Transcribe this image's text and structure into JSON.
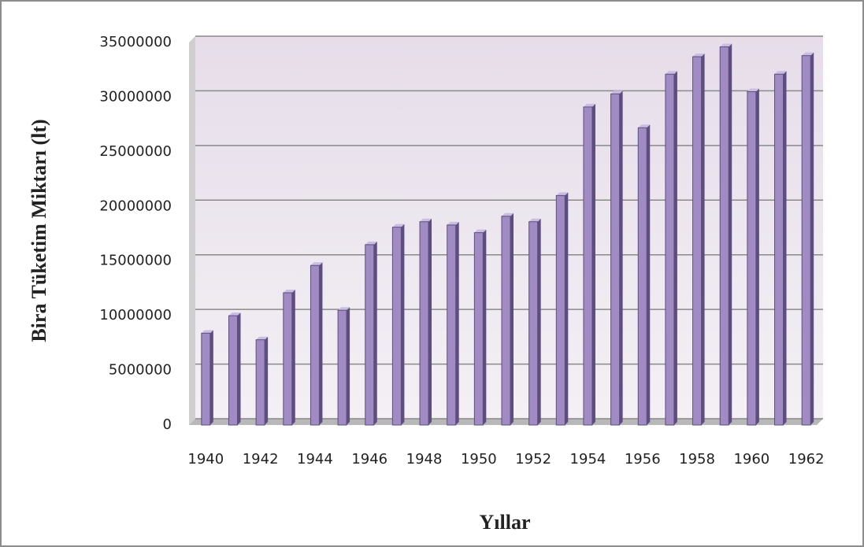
{
  "chart_data": {
    "type": "bar",
    "xlabel": "Yıllar",
    "ylabel": "Bira Tüketim Miktarı (lt)",
    "categories": [
      "1940",
      null,
      "1942",
      null,
      "1944",
      null,
      "1946",
      null,
      "1948",
      null,
      "1950",
      null,
      "1952",
      null,
      "1954",
      null,
      "1956",
      null,
      "1958",
      null,
      "1960",
      null,
      "1962"
    ],
    "values": [
      8400000,
      10000000,
      7800000,
      12100000,
      14600000,
      10500000,
      16500000,
      18100000,
      18600000,
      18300000,
      17600000,
      19100000,
      18600000,
      21000000,
      29100000,
      30300000,
      27200000,
      32100000,
      33700000,
      34600000,
      30500000,
      32100000,
      33800000
    ],
    "color": "#a08cc2",
    "ylim": [
      0,
      35000000
    ],
    "yticks": [
      0,
      5000000,
      10000000,
      15000000,
      20000000,
      25000000,
      30000000,
      35000000
    ],
    "grid": true
  }
}
